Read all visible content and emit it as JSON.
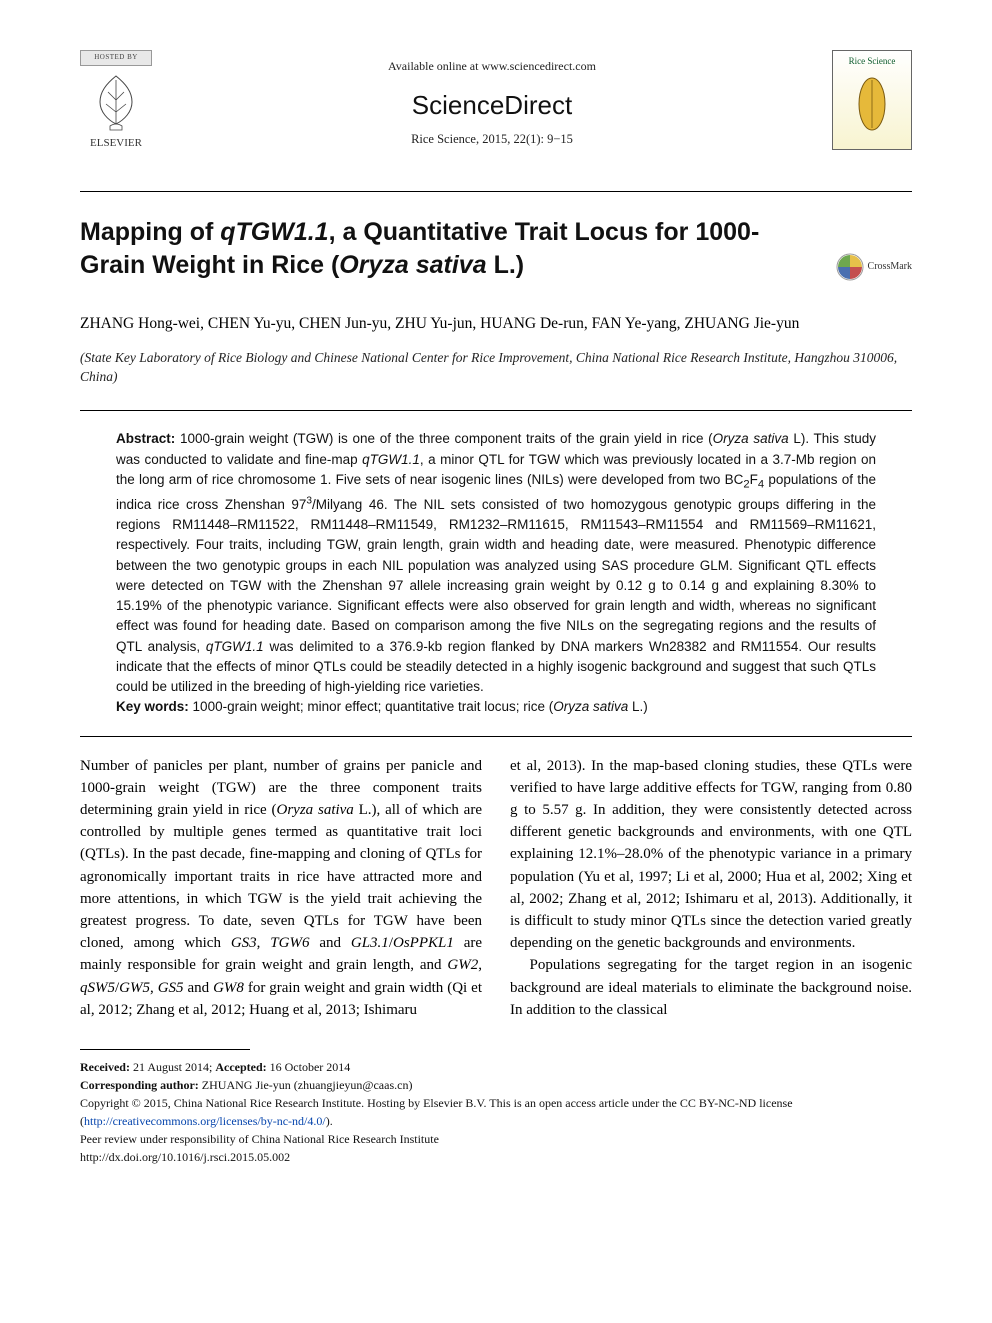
{
  "header": {
    "hosted_by": "HOSTED BY",
    "publisher": "ELSEVIER",
    "available_line": "Available online at www.sciencedirect.com",
    "site_name": "ScienceDirect",
    "journal_ref": "Rice Science, 2015, 22(1): 9−15",
    "cover_label": "Rice Science"
  },
  "article": {
    "title_html": "Mapping of <i>qTGW1.1</i>, a Quantitative Trait Locus for 1000-Grain Weight in Rice (<i>Oryza sativa</i> L.)",
    "crossmark_label": "CrossMark",
    "authors_html": "Z<span class='sc'>HANG</span> Hong-wei, C<span class='sc'>HEN</span> Yu-yu, C<span class='sc'>HEN</span> Jun-yu, Z<span class='sc'>HU</span> Yu-jun, H<span class='sc'>UANG</span> De-run, F<span class='sc'>AN</span> Ye-yang, Z<span class='sc'>HUANG</span> Jie-yun",
    "affiliation": "(State Key Laboratory of Rice Biology and Chinese National Center for Rice Improvement, China National Rice Research Institute, Hangzhou 310006, China)"
  },
  "abstract": {
    "label": "Abstract:",
    "text_html": "1000-grain weight (TGW) is one of the three component traits of the grain yield in rice (<i>Oryza sativa</i> L). This study was conducted to validate and fine-map <i>qTGW1.1</i>, a minor QTL for TGW which was previously located in a 3.7-Mb region on the long arm of rice chromosome 1. Five sets of near isogenic lines (NILs) were developed from two BC<sub>2</sub>F<sub>4</sub> populations of the indica rice cross Zhenshan 97<sup>3</sup>/Milyang 46. The NIL sets consisted of two homozygous genotypic groups differing in the regions RM11448–RM11522, RM11448–RM11549, RM1232–RM11615, RM11543–RM11554 and RM11569–RM11621, respectively. Four traits, including TGW, grain length, grain width and heading date, were measured. Phenotypic difference between the two genotypic groups in each NIL population was analyzed using SAS procedure GLM. Significant QTL effects were detected on TGW with the Zhenshan 97 allele increasing grain weight by 0.12 g to 0.14 g and explaining 8.30% to 15.19% of the phenotypic variance. Significant effects were also observed for grain length and width, whereas no significant effect was found for heading date. Based on comparison among the five NILs on the segregating regions and the results of QTL analysis, <i>qTGW1.1</i> was delimited to a 376.9-kb region flanked by DNA markers Wn28382 and RM11554. Our results indicate that the effects of minor QTLs could be steadily detected in a highly isogenic background and suggest that such QTLs could be utilized in the breeding of high-yielding rice varieties.",
    "kw_label": "Key words:",
    "keywords_html": "1000-grain weight; minor effect; quantitative trait locus; rice (<i>Oryza sativa</i> L.)"
  },
  "body": {
    "col1_html": "Number of panicles per plant, number of grains per panicle and 1000-grain weight (TGW) are the three component traits determining grain yield in rice (<i>Oryza sativa</i> L.), all of which are controlled by multiple genes termed as quantitative trait loci (QTLs). In the past decade, fine-mapping and cloning of QTLs for agronomically important traits in rice have attracted more and more attentions, in which TGW is the yield trait achieving the greatest progress. To date, seven QTLs for TGW have been cloned, among which <i>GS3</i>, <i>TGW6</i> and <i>GL3.1</i>/<i>OsPPKL1</i> are mainly responsible for grain weight and grain length, and <i>GW2</i>, <i>qSW5</i>/<i>GW5</i>, <i>GS5</i> and <i>GW8</i> for grain weight and grain width (Qi et al, 2012; Zhang et al, 2012; Huang et al, 2013; Ishimaru",
    "col2_p1_html": "et al, 2013). In the map-based cloning studies, these QTLs were verified to have large additive effects for TGW, ranging from 0.80 g to 5.57 g. In addition, they were consistently detected across different genetic backgrounds and environments, with one QTL explaining 12.1%–28.0% of the phenotypic variance in a primary population (Yu et al, 1997; Li et al, 2000; Hua et al, 2002; Xing et al, 2002; Zhang et al, 2012; Ishimaru et al, 2013). Additionally, it is difficult to study minor QTLs since the detection varied greatly depending on the genetic backgrounds and environments.",
    "col2_p2_html": "Populations segregating for the target region in an isogenic background are ideal materials to eliminate the background noise. In addition to the classical"
  },
  "footnotes": {
    "received_label": "Received:",
    "received_date": "21 August 2014;",
    "accepted_label": "Accepted:",
    "accepted_date": "16 October 2014",
    "corresponding_label": "Corresponding author:",
    "corresponding_text": "ZHUANG Jie-yun (zhuangjieyun@caas.cn)",
    "copyright": "Copyright © 2015, China National Rice Research Institute. Hosting by Elsevier B.V. This is an open access article under the CC BY-NC-ND license",
    "license_url": "http://creativecommons.org/licenses/by-nc-nd/4.0/",
    "peer_review": "Peer review under responsibility of China National Rice Research Institute",
    "doi": "http://dx.doi.org/10.1016/j.rsci.2015.05.002"
  },
  "colors": {
    "text": "#000000",
    "link": "#0645ad",
    "rule": "#000000",
    "elsevier_orange": "#e8792a",
    "cover_green": "#2a6e2e",
    "cover_gold": "#e6b93a",
    "crossmark_blue": "#4a6fb0",
    "crossmark_red": "#c44f4f",
    "crossmark_yellow": "#e6c04a",
    "crossmark_green": "#6ea84f"
  }
}
